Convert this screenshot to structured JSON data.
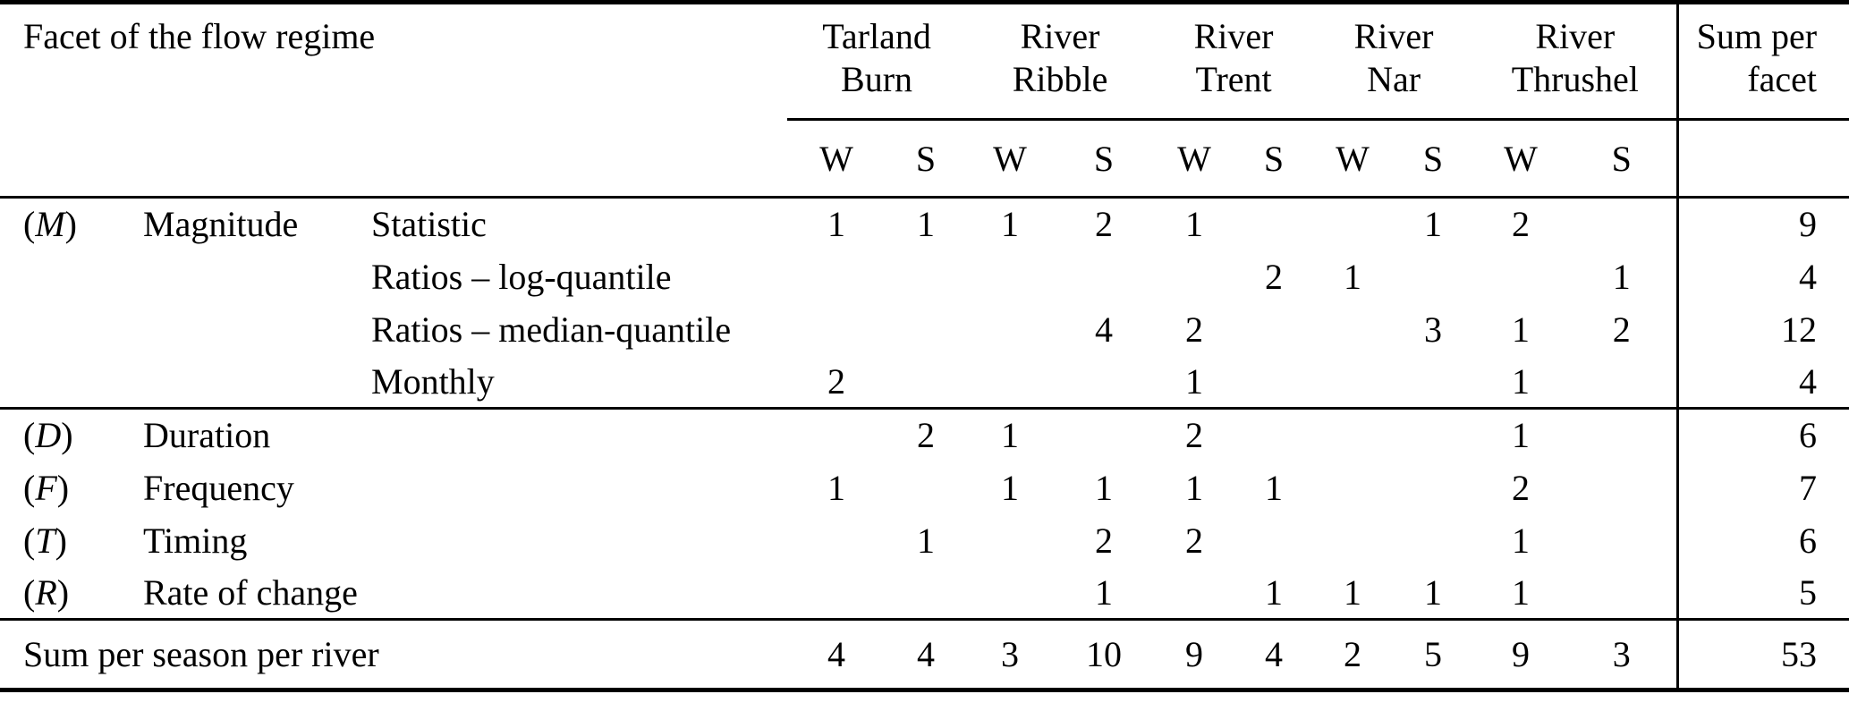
{
  "header": {
    "facet_label": "Facet of the flow regime",
    "rivers": [
      {
        "line1": "Tarland",
        "line2": "Burn"
      },
      {
        "line1": "River",
        "line2": "Ribble"
      },
      {
        "line1": "River",
        "line2": "Trent"
      },
      {
        "line1": "River",
        "line2": "Nar"
      },
      {
        "line1": "River",
        "line2": "Thrushel"
      }
    ],
    "season_labels": [
      "W",
      "S",
      "W",
      "S",
      "W",
      "S",
      "W",
      "S",
      "W",
      "S"
    ],
    "sum_header": {
      "line1": "Sum per",
      "line2": "facet"
    }
  },
  "rows": [
    {
      "prefix_open": "(",
      "prefix_letter": "M",
      "prefix_close": ")",
      "facet": "Magnitude",
      "sub": "Statistic",
      "values": [
        "1",
        "1",
        "1",
        "2",
        "1",
        "",
        "",
        "1",
        "2",
        ""
      ],
      "sum": "9",
      "rule_after": false
    },
    {
      "prefix_open": "",
      "prefix_letter": "",
      "prefix_close": "",
      "facet": "",
      "sub": "Ratios – log-quantile",
      "values": [
        "",
        "",
        "",
        "",
        "",
        "2",
        "1",
        "",
        "",
        "1"
      ],
      "sum": "4",
      "rule_after": false
    },
    {
      "prefix_open": "",
      "prefix_letter": "",
      "prefix_close": "",
      "facet": "",
      "sub": "Ratios – median-quantile",
      "values": [
        "",
        "",
        "",
        "4",
        "2",
        "",
        "",
        "3",
        "1",
        "2"
      ],
      "sum": "12",
      "rule_after": false
    },
    {
      "prefix_open": "",
      "prefix_letter": "",
      "prefix_close": "",
      "facet": "",
      "sub": "Monthly",
      "values": [
        "2",
        "",
        "",
        "",
        "1",
        "",
        "",
        "",
        "1",
        ""
      ],
      "sum": "4",
      "rule_after": true
    },
    {
      "prefix_open": "(",
      "prefix_letter": "D",
      "prefix_close": ")",
      "facet": "Duration",
      "sub": "",
      "values": [
        "",
        "2",
        "1",
        "",
        "2",
        "",
        "",
        "",
        "1",
        ""
      ],
      "sum": "6",
      "rule_after": false
    },
    {
      "prefix_open": "(",
      "prefix_letter": "F",
      "prefix_close": ")",
      "facet": "Frequency",
      "sub": "",
      "values": [
        "1",
        "",
        "1",
        "1",
        "1",
        "1",
        "",
        "",
        "2",
        ""
      ],
      "sum": "7",
      "rule_after": false
    },
    {
      "prefix_open": "(",
      "prefix_letter": "T",
      "prefix_close": ")",
      "facet": "Timing",
      "sub": "",
      "values": [
        "",
        "1",
        "",
        "2",
        "2",
        "",
        "",
        "",
        "1",
        ""
      ],
      "sum": "6",
      "rule_after": false
    },
    {
      "prefix_open": "(",
      "prefix_letter": "R",
      "prefix_close": ")",
      "facet": "Rate of change",
      "sub": "",
      "values": [
        "",
        "",
        "",
        "1",
        "",
        "1",
        "1",
        "1",
        "1",
        ""
      ],
      "sum": "5",
      "rule_after": true
    }
  ],
  "footer": {
    "label": "Sum per season per river",
    "values": [
      "4",
      "4",
      "3",
      "10",
      "9",
      "4",
      "2",
      "5",
      "9",
      "3"
    ],
    "sum": "53"
  },
  "colors": {
    "text": "#000000",
    "background": "#ffffff",
    "rule": "#000000"
  }
}
